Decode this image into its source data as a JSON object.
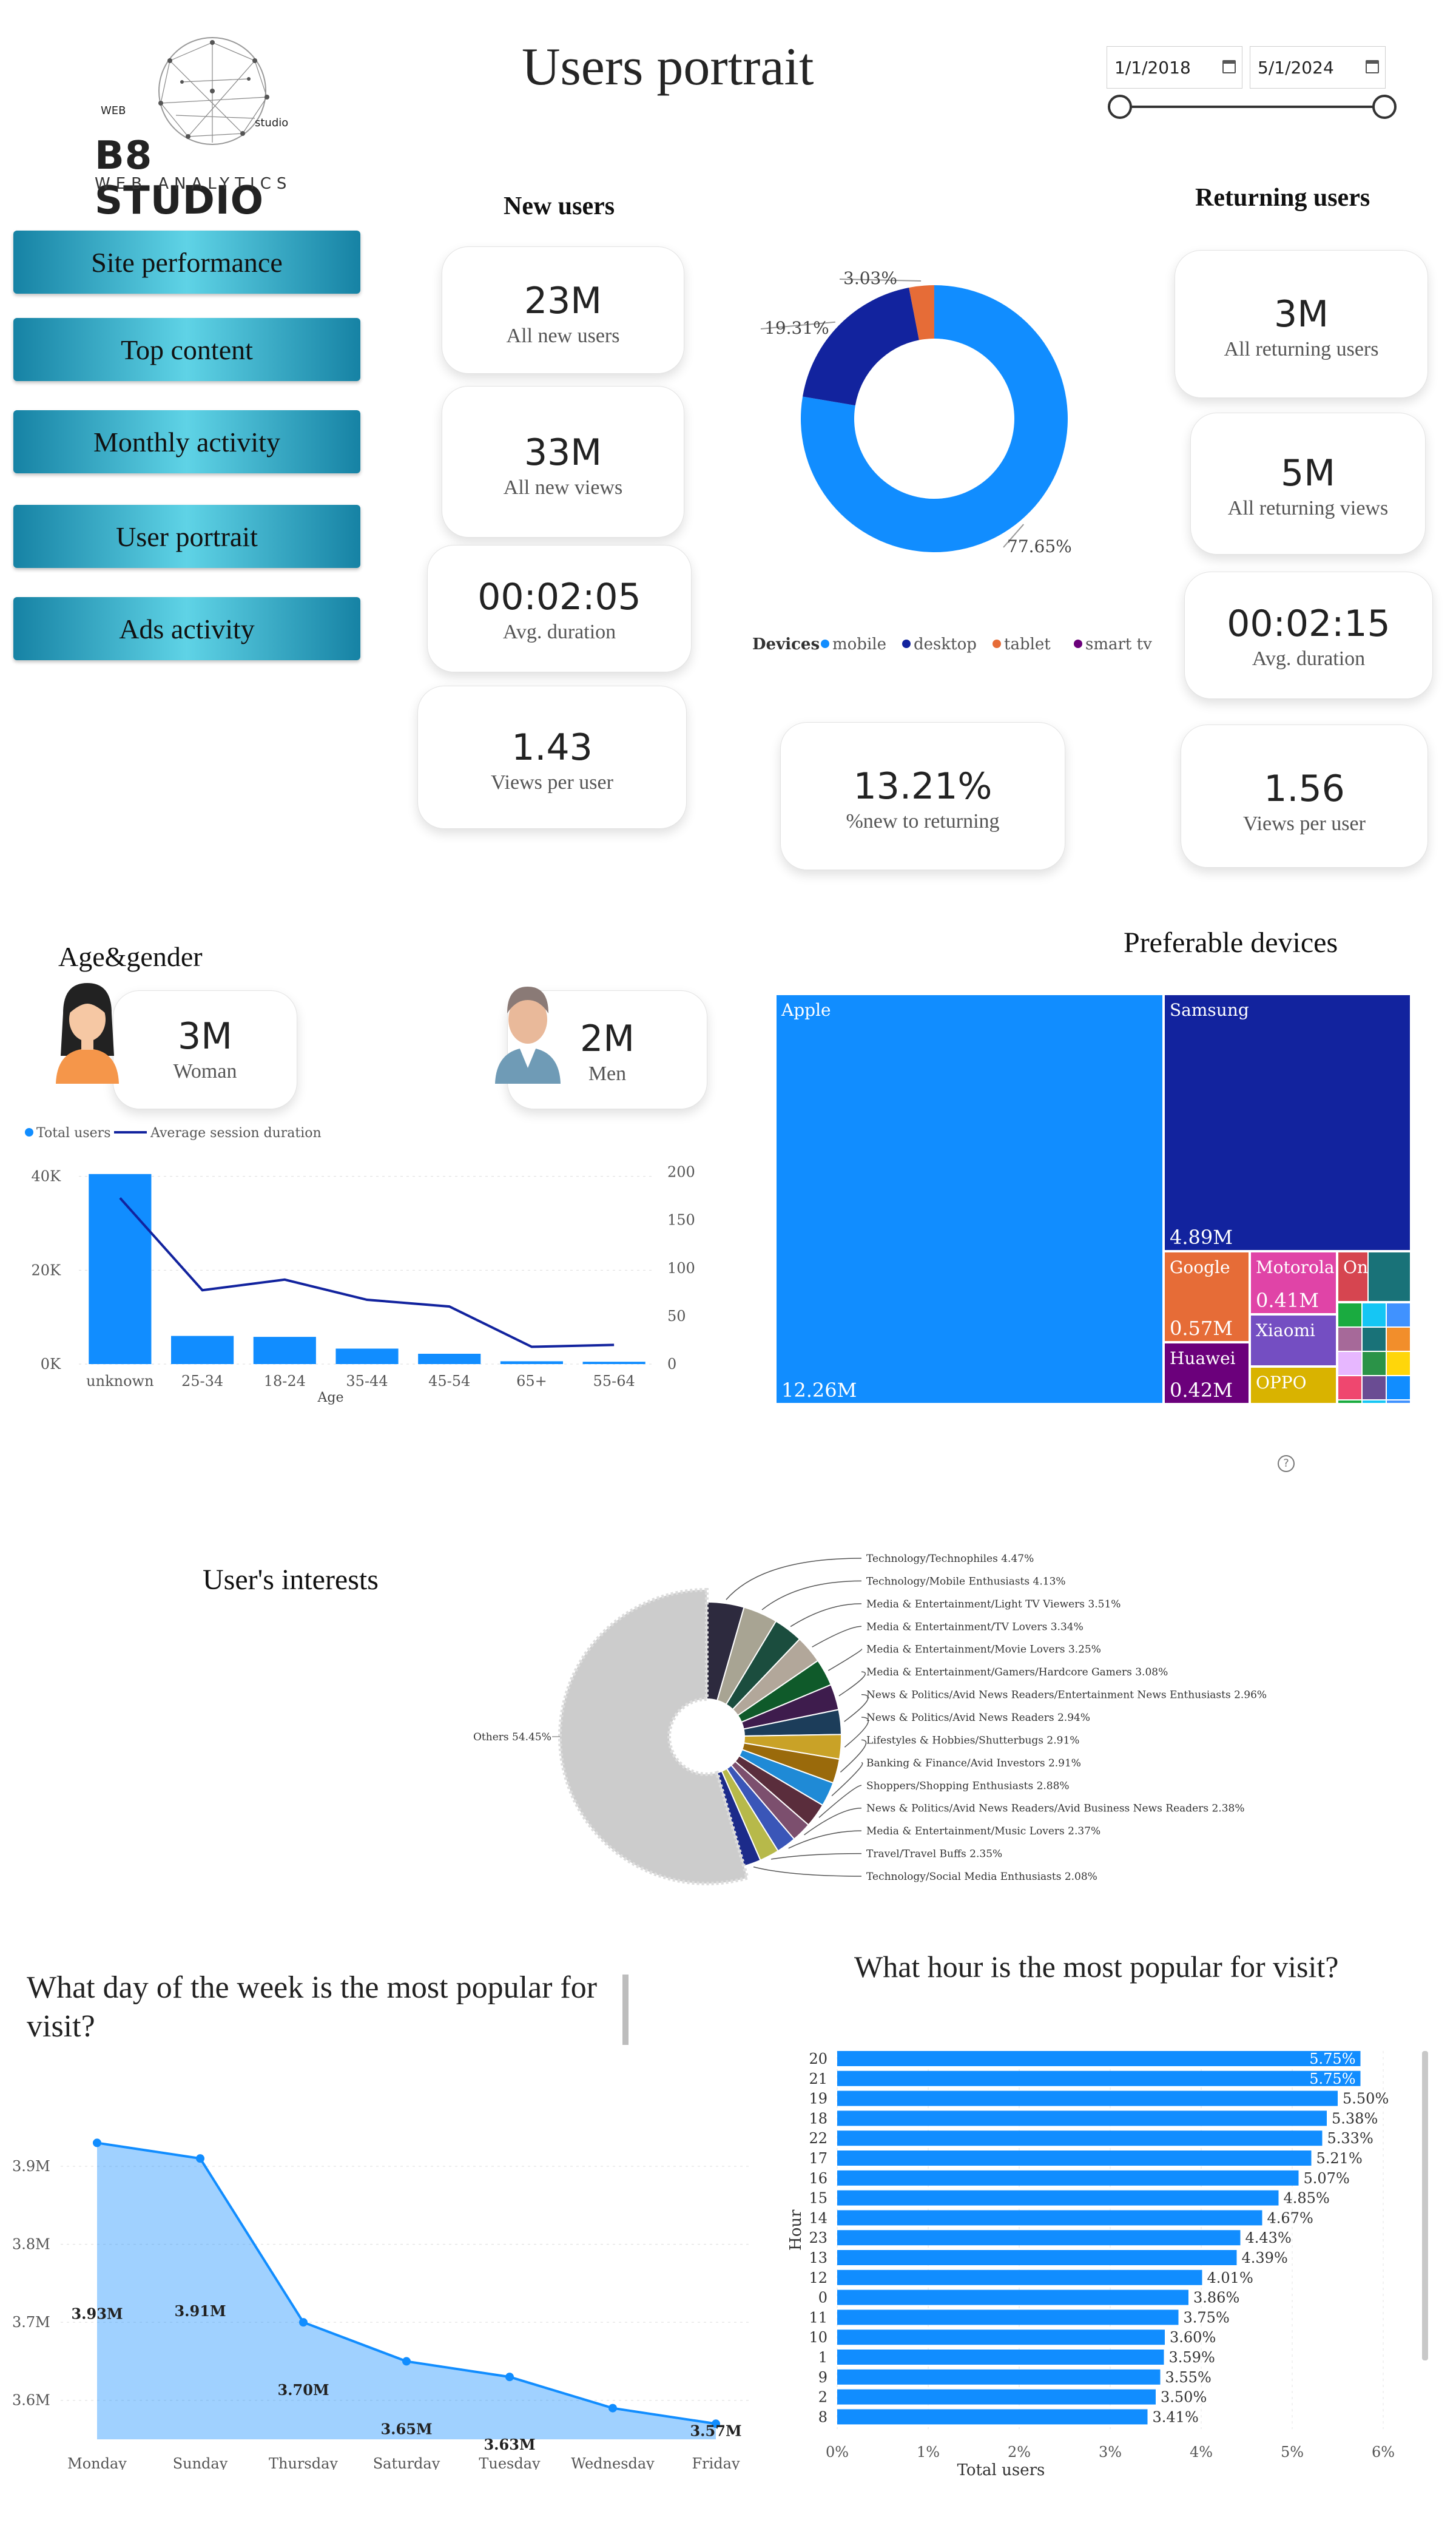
{
  "header": {
    "title": "Users portrait",
    "date_start": "1/1/2018",
    "date_end": "5/1/2024"
  },
  "logo": {
    "top": "WEB",
    "side": "studio",
    "name": "B8 STUDIO",
    "sub": "WEB ANALYTICS"
  },
  "nav": [
    {
      "label": "Site performance"
    },
    {
      "label": "Top content"
    },
    {
      "label": "Monthly activity"
    },
    {
      "label": "User portrait"
    },
    {
      "label": "Ads activity"
    }
  ],
  "new_users": {
    "title": "New users",
    "cards": [
      {
        "value": "23M",
        "label": "All new users"
      },
      {
        "value": "33M",
        "label": "All new views"
      },
      {
        "value": "00:02:05",
        "label": "Avg. duration"
      },
      {
        "value": "1.43",
        "label": "Views per user"
      }
    ]
  },
  "returning_users": {
    "title": "Returning users",
    "cards": [
      {
        "value": "3M",
        "label": "All returning users"
      },
      {
        "value": "5M",
        "label": "All returning views"
      },
      {
        "value": "00:02:15",
        "label": "Avg. duration"
      },
      {
        "value": "1.56",
        "label": "Views per user"
      }
    ]
  },
  "ratio": {
    "value": "13.21%",
    "label": "%new to returning"
  },
  "age_gender": {
    "title": "Age&gender",
    "woman_value": "3M",
    "woman_label": "Woman",
    "men_value": "2M",
    "men_label": "Men"
  },
  "devices_title": "Preferable devices",
  "interests_title": "User's interests",
  "weekday_title": "What day of the week is the most popular for visit?",
  "hour_title": "What hour is the most popular for visit?",
  "colors": {
    "blue": "#118dff",
    "navy": "#12239e",
    "orange": "#e66c37",
    "purple": "#6b007b",
    "nav_accent": "#1a9cbf"
  },
  "chart_data": [
    {
      "id": "devices_donut",
      "type": "pie",
      "legend_title": "Devices",
      "legend_position": "bottom",
      "categories": [
        "mobile",
        "desktop",
        "tablet",
        "smart tv"
      ],
      "values": [
        77.65,
        19.31,
        3.03,
        0.01
      ],
      "labels": [
        "77.65%",
        "19.31%",
        "3.03%",
        ""
      ],
      "colors": [
        "#118dff",
        "#12239e",
        "#e66c37",
        "#6b007b"
      ]
    },
    {
      "id": "age_chart",
      "type": "bar",
      "xlabel": "Age",
      "categories": [
        "unknown",
        "25-34",
        "18-24",
        "35-44",
        "45-54",
        "65+",
        "55-64"
      ],
      "series": [
        {
          "name": "Total users",
          "values": [
            40500,
            6000,
            5800,
            3300,
            2200,
            600,
            500
          ],
          "color": "#118dff"
        },
        {
          "name": "Average session duration",
          "values": [
            173,
            77,
            88,
            67,
            60,
            18,
            20
          ],
          "type": "line",
          "color": "#12239e"
        }
      ],
      "ylim": [
        0,
        45000
      ],
      "y_ticks": [
        "0K",
        "20K",
        "40K"
      ],
      "y2lim": [
        0,
        220
      ],
      "y2_ticks": [
        "0",
        "50",
        "100",
        "150",
        "200"
      ],
      "legend_position": "top-left"
    },
    {
      "id": "devices_treemap",
      "type": "treemap",
      "items": [
        {
          "name": "Apple",
          "value": "12.26M",
          "color": "#118dff"
        },
        {
          "name": "Samsung",
          "value": "4.89M",
          "color": "#12239e"
        },
        {
          "name": "Google",
          "value": "0.57M",
          "color": "#e66c37"
        },
        {
          "name": "Motorola",
          "value": "0.41M",
          "color": "#e044a7"
        },
        {
          "name": "Huawei",
          "value": "0.42M",
          "color": "#6b007b"
        },
        {
          "name": "Xiaomi",
          "value": "",
          "color": "#744ec2"
        },
        {
          "name": "OPPO",
          "value": "",
          "color": "#d9b300"
        },
        {
          "name": "On...",
          "value": "",
          "color": "#d64550"
        }
      ]
    },
    {
      "id": "interests",
      "type": "pie",
      "categories": [
        "Technology/Technophiles",
        "Technology/Mobile Enthusiasts",
        "Media & Entertainment/Light TV Viewers",
        "Media & Entertainment/TV Lovers",
        "Media & Entertainment/Movie Lovers",
        "Media & Entertainment/Gamers/Hardcore Gamers",
        "News & Politics/Avid News Readers/Entertainment News Enthusiasts",
        "News & Politics/Avid News Readers",
        "Lifestyles & Hobbies/Shutterbugs",
        "Banking & Finance/Avid Investors",
        "Shoppers/Shopping Enthusiasts",
        "News & Politics/Avid News Readers/Avid Business News Readers",
        "Media & Entertainment/Music Lovers",
        "Travel/Travel Buffs",
        "Technology/Social Media Enthusiasts",
        "Others"
      ],
      "values": [
        4.47,
        4.13,
        3.51,
        3.34,
        3.25,
        3.08,
        2.96,
        2.94,
        2.91,
        2.91,
        2.88,
        2.38,
        2.37,
        2.35,
        2.08,
        54.45
      ],
      "labels": [
        "Technology/Technophiles 4.47%",
        "Technology/Mobile Enthusiasts 4.13%",
        "Media & Entertainment/Light TV Viewers 3.51%",
        "Media & Entertainment/TV Lovers 3.34%",
        "Media & Entertainment/Movie Lovers 3.25%",
        "Media & Entertainment/Gamers/Hardcore Gamers 3.08%",
        "News & Politics/Avid News Readers/Entertainment News Enthusiasts 2.96%",
        "News & Politics/Avid News Readers 2.94%",
        "Lifestyles & Hobbies/Shutterbugs 2.91%",
        "Banking & Finance/Avid Investors 2.91%",
        "Shoppers/Shopping Enthusiasts 2.88%",
        "News & Politics/Avid News Readers/Avid Business News Readers 2.38%",
        "Media & Entertainment/Music Lovers 2.37%",
        "Travel/Travel Buffs 2.35%",
        "Technology/Social Media Enthusiasts 2.08%",
        "Others 54.45%"
      ],
      "colors": [
        "#2d2a3e",
        "#a8a493",
        "#1b4d3e",
        "#b2a79a",
        "#0f5a2a",
        "#3e1c4d",
        "#1c3d5a",
        "#c9a227",
        "#9a6a0b",
        "#1f8ad6",
        "#5a2d3c",
        "#7c4f6e",
        "#3a56b8",
        "#b7b94a",
        "#1c2b8a",
        "#cccccc"
      ]
    },
    {
      "id": "weekday",
      "type": "area",
      "categories": [
        "Monday",
        "Sunday",
        "Thursday",
        "Saturday",
        "Tuesday",
        "Wednesday",
        "Friday"
      ],
      "values": [
        3.93,
        3.91,
        3.7,
        3.65,
        3.63,
        3.59,
        3.57
      ],
      "labels": [
        "3.93M",
        "3.91M",
        "3.70M",
        "3.65M",
        "3.63M",
        "3.59M",
        "3.57M"
      ],
      "ylim": [
        3.55,
        3.97
      ],
      "y_ticks": [
        "3.6M",
        "3.7M",
        "3.8M",
        "3.9M"
      ],
      "color": "#118dff"
    },
    {
      "id": "hour",
      "type": "bar",
      "orientation": "horizontal",
      "xlabel": "Total users",
      "ylabel": "Hour",
      "categories": [
        "20",
        "21",
        "19",
        "18",
        "22",
        "17",
        "16",
        "15",
        "14",
        "23",
        "13",
        "12",
        "0",
        "11",
        "10",
        "1",
        "9",
        "2",
        "8"
      ],
      "values": [
        5.75,
        5.75,
        5.5,
        5.38,
        5.33,
        5.21,
        5.07,
        4.85,
        4.67,
        4.43,
        4.39,
        4.01,
        3.86,
        3.75,
        3.6,
        3.59,
        3.55,
        3.5,
        3.41
      ],
      "labels": [
        "5.75%",
        "5.75%",
        "5.50%",
        "5.38%",
        "5.33%",
        "5.21%",
        "5.07%",
        "4.85%",
        "4.67%",
        "4.43%",
        "4.39%",
        "4.01%",
        "3.86%",
        "3.75%",
        "3.60%",
        "3.59%",
        "3.55%",
        "3.50%",
        "3.41%"
      ],
      "xlim": [
        0,
        6
      ],
      "x_ticks": [
        "0%",
        "1%",
        "2%",
        "3%",
        "4%",
        "5%",
        "6%"
      ],
      "color": "#118dff"
    }
  ]
}
